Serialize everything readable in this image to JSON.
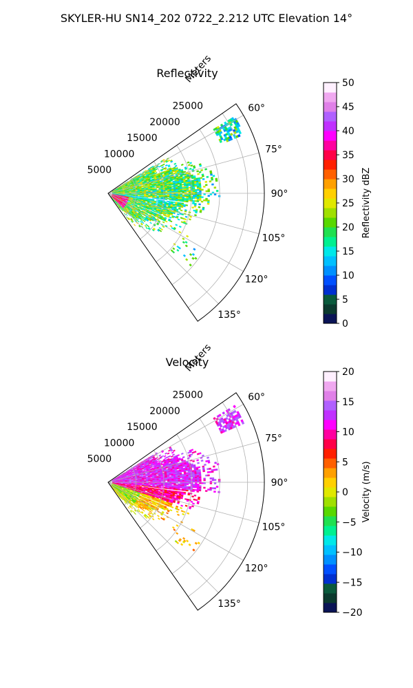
{
  "suptitle": "SKYLER-HU  SN14_202  0722_2.212 UTC Elevation 14°",
  "chart_data": [
    {
      "type": "heatmap",
      "title": "Reflectivity",
      "range_label": "Meters",
      "range_ticks": [
        "5000",
        "10000",
        "15000",
        "20000",
        "25000"
      ],
      "range_tick_values": [
        5000,
        10000,
        15000,
        20000,
        25000
      ],
      "range_max": 28000,
      "azimuth_ticks": [
        "60°",
        "75°",
        "90°",
        "105°",
        "120°",
        "135°"
      ],
      "azimuth_tick_values": [
        60,
        75,
        90,
        105,
        120,
        135
      ],
      "azimuth_range": [
        55,
        145
      ],
      "grid": true,
      "colorbar": {
        "label": "Reflectivity dBZ",
        "range": [
          0,
          50
        ],
        "ticks": [
          "0",
          "5",
          "10",
          "15",
          "20",
          "25",
          "30",
          "35",
          "40",
          "45",
          "50"
        ],
        "tick_values": [
          0,
          5,
          10,
          15,
          20,
          25,
          30,
          35,
          40,
          45,
          50
        ],
        "colors": [
          "#0a1456",
          "#0b3a2e",
          "#0a5a3c",
          "#0030d0",
          "#0050ff",
          "#0090ff",
          "#00c0ff",
          "#00e8e8",
          "#00f090",
          "#20e050",
          "#58d800",
          "#a0e000",
          "#e0e800",
          "#ffd000",
          "#ffa000",
          "#ff6000",
          "#ff2000",
          "#ff0048",
          "#ff00a0",
          "#ff00ff",
          "#c030ff",
          "#b060ff",
          "#e080e8",
          "#f0a8f0",
          "#fff0ff"
        ]
      }
    },
    {
      "type": "heatmap",
      "title": "Velocity",
      "range_label": "Meters",
      "range_ticks": [
        "5000",
        "10000",
        "15000",
        "20000",
        "25000"
      ],
      "range_tick_values": [
        5000,
        10000,
        15000,
        20000,
        25000
      ],
      "range_max": 28000,
      "azimuth_ticks": [
        "60°",
        "75°",
        "90°",
        "105°",
        "120°",
        "135°"
      ],
      "azimuth_tick_values": [
        60,
        75,
        90,
        105,
        120,
        135
      ],
      "azimuth_range": [
        55,
        145
      ],
      "grid": true,
      "colorbar": {
        "label": "Velocity (m/s)",
        "range": [
          -20,
          20
        ],
        "ticks": [
          "−20",
          "−15",
          "−10",
          "−5",
          "0",
          "5",
          "10",
          "15",
          "20"
        ],
        "tick_values": [
          -20,
          -15,
          -10,
          -5,
          0,
          5,
          10,
          15,
          20
        ],
        "colors": [
          "#0a1456",
          "#0b3a2e",
          "#0a5a3c",
          "#0030d0",
          "#0050ff",
          "#0090ff",
          "#00c0ff",
          "#00e8e8",
          "#00f090",
          "#20e050",
          "#58d800",
          "#a0e000",
          "#e0e800",
          "#ffd000",
          "#ffa000",
          "#ff6000",
          "#ff2000",
          "#ff0048",
          "#ff00a0",
          "#ff00ff",
          "#c030ff",
          "#b060ff",
          "#e080e8",
          "#f0a8f0",
          "#fff0ff"
        ]
      }
    }
  ]
}
